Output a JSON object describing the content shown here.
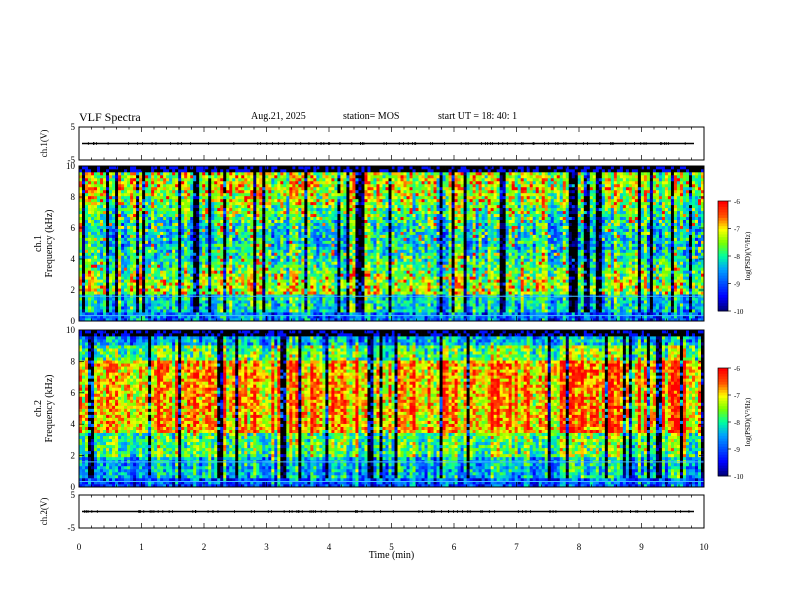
{
  "header": {
    "title": "VLF Spectra",
    "date": "Aug.21, 2025",
    "station": "station= MOS",
    "start_ut": "start  UT  =   18: 40: 1"
  },
  "chart_data": [
    {
      "type": "line",
      "panel": "ch1-waveform",
      "ylabel": "ch.1(V)",
      "ylim": [
        -5,
        5
      ],
      "yticks": [
        "5",
        "-5"
      ],
      "xlim": [
        0,
        10
      ],
      "baseline": 0
    },
    {
      "type": "heatmap",
      "panel": "ch1-spectrogram",
      "ylabel_line1": "ch.1",
      "ylabel_line2": "Frequency (kHz)",
      "ylim": [
        0,
        10
      ],
      "yticks": [
        "0",
        "2",
        "4",
        "6",
        "8",
        "10"
      ],
      "xlim": [
        0,
        10
      ],
      "colorbar": {
        "label": "log(PSD)(V²/Hz)",
        "range": [
          -10,
          -6
        ],
        "ticks": [
          "-6",
          "-7",
          "-8",
          "-9",
          "-10"
        ]
      }
    },
    {
      "type": "heatmap",
      "panel": "ch2-spectrogram",
      "ylabel_line1": "ch.2",
      "ylabel_line2": "Frequency (kHz)",
      "ylim": [
        0,
        10
      ],
      "yticks": [
        "0",
        "2",
        "4",
        "6",
        "8",
        "10"
      ],
      "xlim": [
        0,
        10
      ],
      "colorbar": {
        "label": "log(PSD)(V²/Hz)",
        "range": [
          -10,
          -6
        ],
        "ticks": [
          "-6",
          "-7",
          "-8",
          "-9",
          "-10"
        ]
      }
    },
    {
      "type": "line",
      "panel": "ch2-waveform",
      "ylabel": "ch.2(V)",
      "ylim": [
        -5,
        5
      ],
      "yticks": [
        "5",
        "-5"
      ],
      "xlim": [
        0,
        10
      ],
      "baseline": 0,
      "xlabel": "Time (min)",
      "xticks": [
        "0",
        "1",
        "2",
        "3",
        "4",
        "5",
        "6",
        "7",
        "8",
        "9",
        "10"
      ]
    }
  ],
  "colors": {
    "low": "#00007f",
    "mid_low": "#0080ff",
    "mid": "#00ff80",
    "mid_high": "#ffff00",
    "high": "#ff0000",
    "gap": "#000000"
  }
}
